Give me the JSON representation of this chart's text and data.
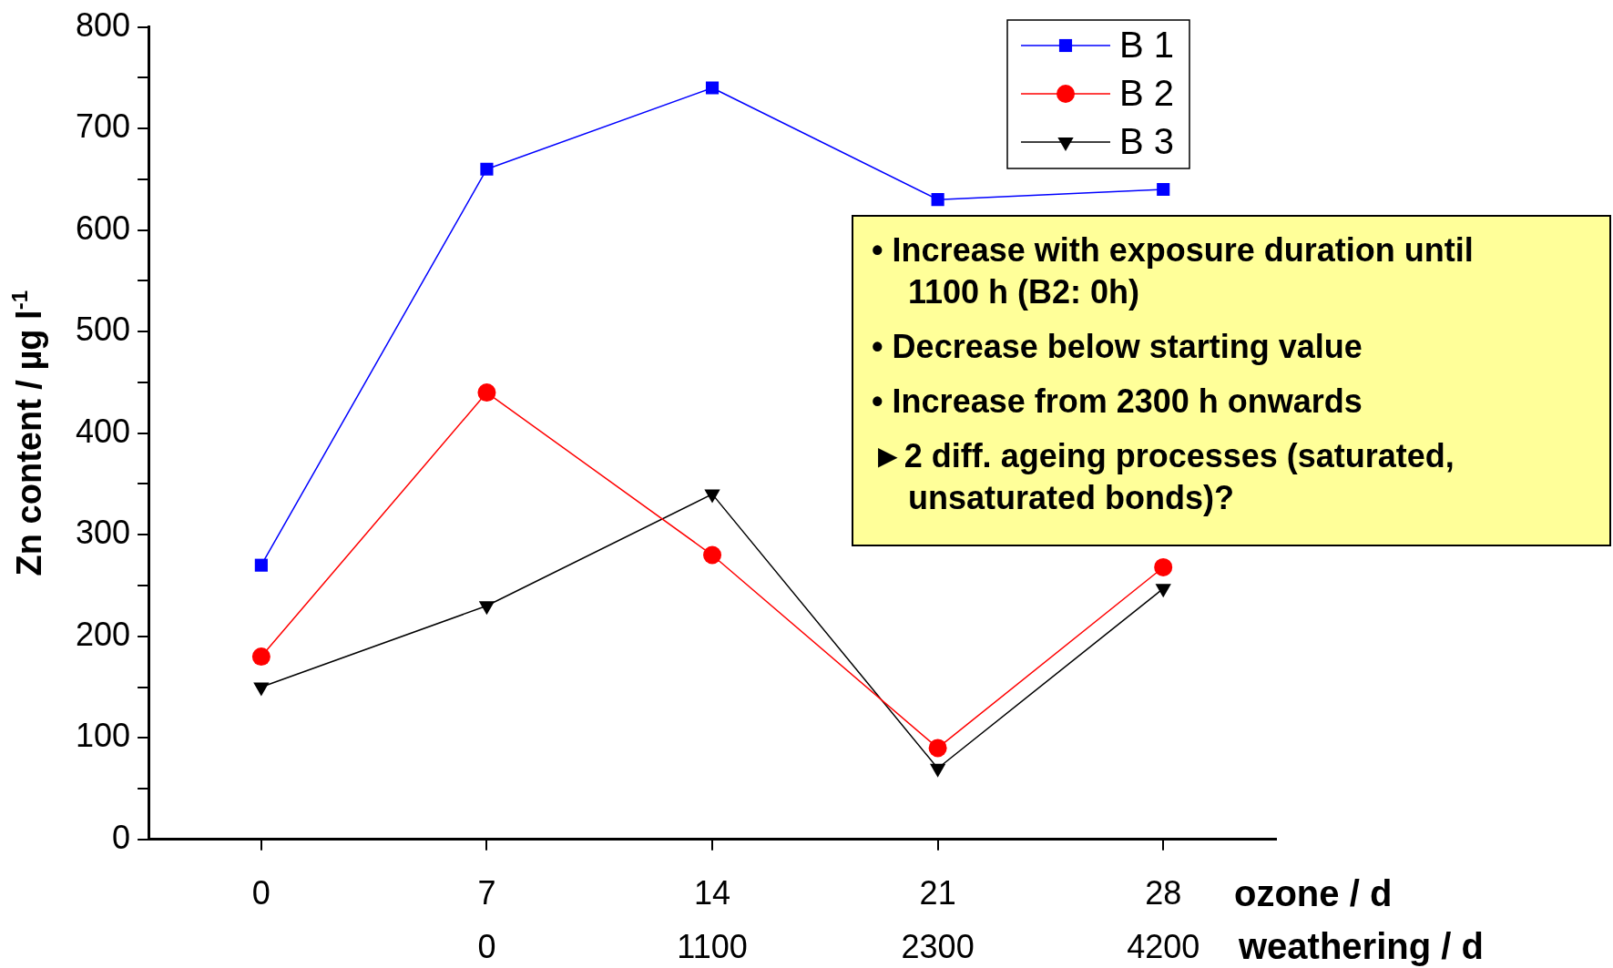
{
  "chart_data": {
    "type": "line",
    "ylabel": "Zn content / µg l$^{-1}$",
    "xlabel": "ozone / d",
    "x2label": "weathering / d",
    "x": [
      0,
      7,
      14,
      21,
      28
    ],
    "xlim": [
      -3.5,
      31.5
    ],
    "xticks": [
      0,
      7,
      14,
      21,
      28
    ],
    "ylim": [
      0,
      800
    ],
    "yticks": [
      0,
      {
        "value": 50,
        "label": null
      },
      100,
      {
        "value": 150,
        "label": null
      },
      200,
      {
        "value": 250,
        "label": null
      },
      300,
      {
        "value": 350,
        "label": null
      },
      400,
      {
        "value": 450,
        "label": null
      },
      500,
      {
        "value": 550,
        "label": null
      },
      600,
      {
        "value": 650,
        "label": null
      },
      700,
      {
        "value": 750,
        "label": null
      },
      800
    ],
    "grid": false,
    "legend": "top right",
    "line_style": "solid",
    "series": [
      {
        "name": "B 1",
        "color": "#0000ff",
        "marker": "square",
        "values": [
          270,
          660,
          740,
          630,
          640
        ]
      },
      {
        "name": "B 2",
        "color": "#ff0000",
        "marker": "circle",
        "values": [
          180,
          440,
          280,
          90,
          268
        ]
      },
      {
        "name": "B 3",
        "color": "#000000",
        "marker": "triangle",
        "values": [
          150,
          230,
          340,
          70,
          247
        ]
      }
    ],
    "annotations": [
      "• Increase with exposure duration until 1100 h (B2: 0h)",
      "• Decrease below starting value",
      "• Increase from 2300 h onwards",
      "►2 diff. ageing processes (saturated, unsaturated bonds)?",
      "0",
      "1100",
      "2300",
      "4200"
    ]
  }
}
